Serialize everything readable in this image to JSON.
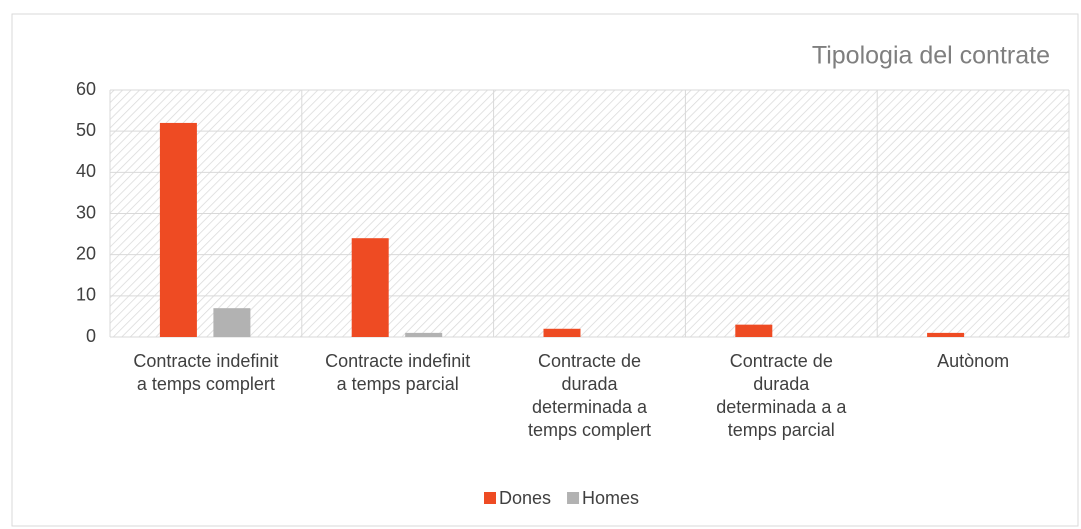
{
  "chart_data": {
    "type": "bar",
    "title": "Tipologia del contrate",
    "categories": [
      "Contracte indefinit a temps complert",
      "Contracte indefinit a temps parcial",
      "Contracte de durada determinada a temps complert",
      "Contracte de durada determinada a a temps parcial",
      "Autònom"
    ],
    "series": [
      {
        "name": "Dones",
        "color": "#ee4b23",
        "values": [
          52,
          24,
          2,
          3,
          1
        ]
      },
      {
        "name": "Homes",
        "color": "#b2b2b2",
        "values": [
          7,
          1,
          0,
          0,
          0
        ]
      }
    ],
    "ylim": [
      0,
      60
    ],
    "yticks": [
      0,
      10,
      20,
      30,
      40,
      50,
      60
    ],
    "grid": true,
    "legend": "bottom"
  }
}
